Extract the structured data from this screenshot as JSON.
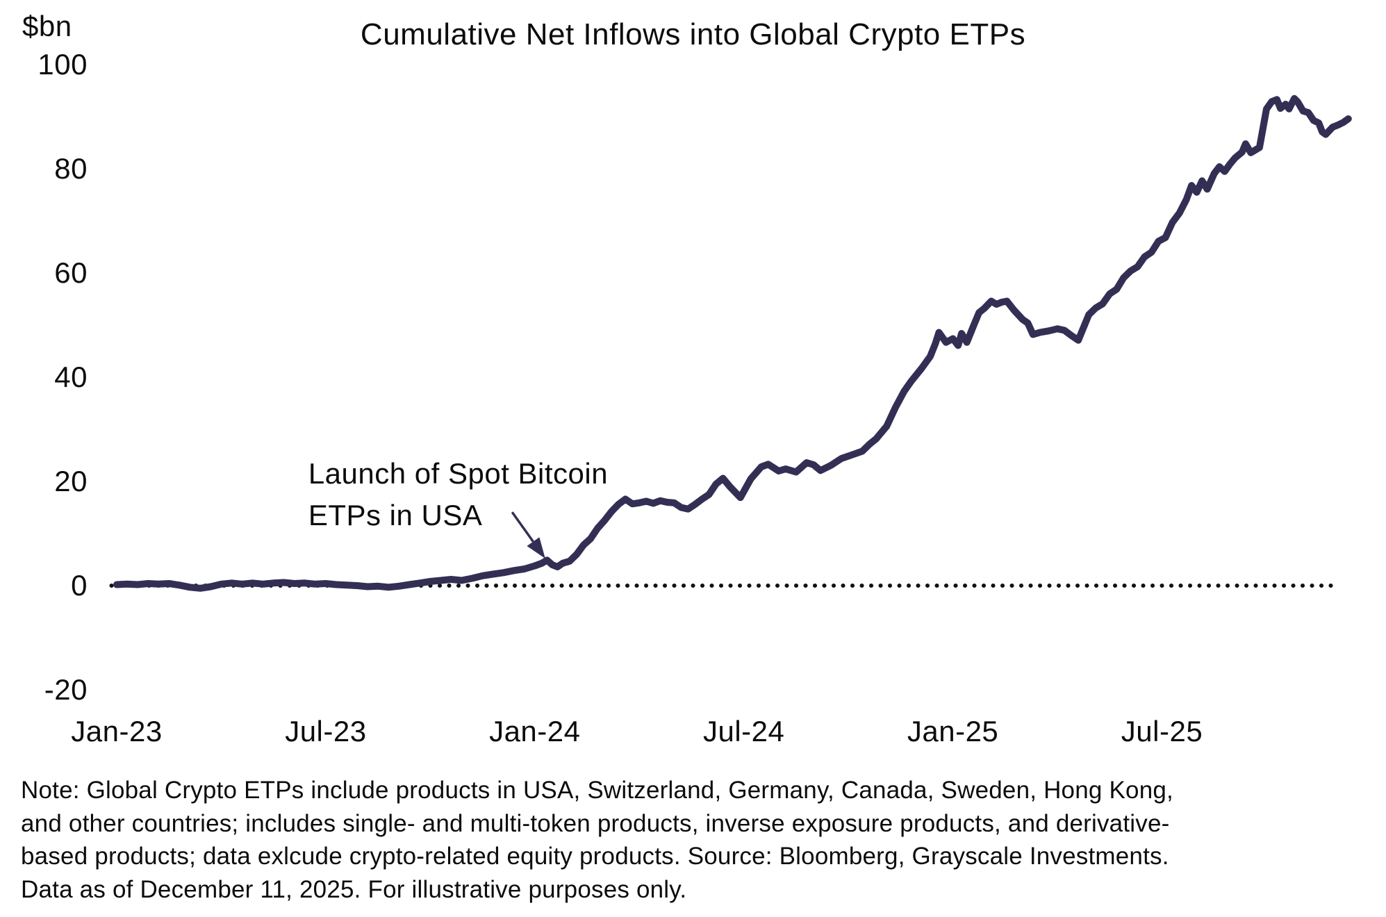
{
  "chart_data": {
    "type": "line",
    "title": "Cumulative Net Inflows into Global Crypto ETPs",
    "xlabel": "",
    "ylabel": "$bn",
    "grid": false,
    "legend": "none",
    "ylim": [
      -20,
      100
    ],
    "y_axis": {
      "unit_label": "$bn",
      "ticks": [
        100,
        80,
        60,
        40,
        20,
        0,
        -20
      ]
    },
    "x_axis": {
      "ticks": [
        {
          "label": "Jan-23",
          "month": 0
        },
        {
          "label": "Jul-23",
          "month": 6
        },
        {
          "label": "Jan-24",
          "month": 12
        },
        {
          "label": "Jul-24",
          "month": 18
        },
        {
          "label": "Jan-25",
          "month": 24
        },
        {
          "label": "Jul-25",
          "month": 30
        }
      ],
      "range_months": [
        0,
        35.4
      ]
    },
    "zero_line": {
      "style": "dotted",
      "color": "#111111",
      "start_month": -0.15,
      "end_month": 35.1
    },
    "series": [
      {
        "name": "Cumulative net inflows into global crypto ETPs ($bn)",
        "color": "#332f54",
        "points": [
          [
            0,
            0.2
          ],
          [
            0.3,
            0.3
          ],
          [
            0.6,
            0.2
          ],
          [
            0.9,
            0.4
          ],
          [
            1.2,
            0.3
          ],
          [
            1.5,
            0.4
          ],
          [
            1.8,
            0.1
          ],
          [
            2.1,
            -0.3
          ],
          [
            2.4,
            -0.5
          ],
          [
            2.7,
            -0.2
          ],
          [
            3,
            0.3
          ],
          [
            3.3,
            0.5
          ],
          [
            3.6,
            0.3
          ],
          [
            3.9,
            0.5
          ],
          [
            4.2,
            0.3
          ],
          [
            4.5,
            0.5
          ],
          [
            4.8,
            0.6
          ],
          [
            5.1,
            0.4
          ],
          [
            5.4,
            0.5
          ],
          [
            5.7,
            0.3
          ],
          [
            6,
            0.4
          ],
          [
            6.3,
            0.2
          ],
          [
            6.6,
            0.1
          ],
          [
            6.9,
            0
          ],
          [
            7.2,
            -0.2
          ],
          [
            7.5,
            -0.1
          ],
          [
            7.8,
            -0.3
          ],
          [
            8.1,
            -0.1
          ],
          [
            8.4,
            0.2
          ],
          [
            8.7,
            0.5
          ],
          [
            9,
            0.8
          ],
          [
            9.3,
            1
          ],
          [
            9.6,
            1.2
          ],
          [
            9.9,
            1
          ],
          [
            10.2,
            1.4
          ],
          [
            10.5,
            1.9
          ],
          [
            10.8,
            2.2
          ],
          [
            11.1,
            2.5
          ],
          [
            11.4,
            2.9
          ],
          [
            11.7,
            3.2
          ],
          [
            12,
            3.8
          ],
          [
            12.2,
            4.3
          ],
          [
            12.35,
            4.9
          ],
          [
            12.5,
            4
          ],
          [
            12.65,
            3.6
          ],
          [
            12.8,
            4.3
          ],
          [
            13,
            4.7
          ],
          [
            13.2,
            6
          ],
          [
            13.4,
            7.8
          ],
          [
            13.6,
            9
          ],
          [
            13.8,
            11
          ],
          [
            14,
            12.5
          ],
          [
            14.2,
            14.2
          ],
          [
            14.4,
            15.6
          ],
          [
            14.6,
            16.6
          ],
          [
            14.8,
            15.7
          ],
          [
            15,
            15.9
          ],
          [
            15.2,
            16.2
          ],
          [
            15.4,
            15.8
          ],
          [
            15.6,
            16.3
          ],
          [
            15.8,
            16
          ],
          [
            16,
            15.9
          ],
          [
            16.2,
            15
          ],
          [
            16.4,
            14.7
          ],
          [
            16.6,
            15.6
          ],
          [
            16.8,
            16.6
          ],
          [
            17,
            17.5
          ],
          [
            17.2,
            19.5
          ],
          [
            17.4,
            20.6
          ],
          [
            17.6,
            19
          ],
          [
            17.9,
            16.9
          ],
          [
            18.2,
            20.5
          ],
          [
            18.5,
            22.8
          ],
          [
            18.7,
            23.3
          ],
          [
            19,
            22
          ],
          [
            19.2,
            22.4
          ],
          [
            19.5,
            21.8
          ],
          [
            19.8,
            23.6
          ],
          [
            20,
            23.2
          ],
          [
            20.2,
            22.1
          ],
          [
            20.5,
            23.1
          ],
          [
            20.8,
            24.4
          ],
          [
            21.1,
            25.1
          ],
          [
            21.4,
            25.8
          ],
          [
            21.6,
            27.1
          ],
          [
            21.8,
            28.2
          ],
          [
            22.1,
            30.6
          ],
          [
            22.35,
            34.2
          ],
          [
            22.6,
            37.3
          ],
          [
            22.8,
            39.2
          ],
          [
            23.1,
            41.7
          ],
          [
            23.35,
            44
          ],
          [
            23.5,
            46.5
          ],
          [
            23.6,
            48.6
          ],
          [
            23.8,
            46.7
          ],
          [
            24,
            47.4
          ],
          [
            24.15,
            46.1
          ],
          [
            24.25,
            48.4
          ],
          [
            24.4,
            46.7
          ],
          [
            24.6,
            50
          ],
          [
            24.75,
            52.4
          ],
          [
            24.9,
            53.2
          ],
          [
            25.1,
            54.6
          ],
          [
            25.25,
            54
          ],
          [
            25.4,
            54.4
          ],
          [
            25.55,
            54.6
          ],
          [
            25.75,
            52.9
          ],
          [
            26,
            51.1
          ],
          [
            26.15,
            50.4
          ],
          [
            26.3,
            48.2
          ],
          [
            26.5,
            48.6
          ],
          [
            26.75,
            48.9
          ],
          [
            27,
            49.3
          ],
          [
            27.2,
            49
          ],
          [
            27.4,
            48
          ],
          [
            27.6,
            47.1
          ],
          [
            27.9,
            52
          ],
          [
            28.1,
            53.3
          ],
          [
            28.3,
            54.1
          ],
          [
            28.5,
            56
          ],
          [
            28.7,
            56.9
          ],
          [
            28.9,
            59.1
          ],
          [
            29.1,
            60.4
          ],
          [
            29.3,
            61.2
          ],
          [
            29.5,
            63.1
          ],
          [
            29.7,
            64
          ],
          [
            29.9,
            66.1
          ],
          [
            30.1,
            66.8
          ],
          [
            30.3,
            69.7
          ],
          [
            30.5,
            71.5
          ],
          [
            30.7,
            74.1
          ],
          [
            30.85,
            76.8
          ],
          [
            31,
            75.5
          ],
          [
            31.15,
            77.7
          ],
          [
            31.3,
            76.1
          ],
          [
            31.5,
            79.1
          ],
          [
            31.65,
            80.4
          ],
          [
            31.8,
            79.5
          ],
          [
            31.95,
            80.9
          ],
          [
            32.1,
            82.1
          ],
          [
            32.3,
            83.2
          ],
          [
            32.4,
            84.8
          ],
          [
            32.55,
            83.1
          ],
          [
            32.8,
            84.1
          ],
          [
            33,
            91.5
          ],
          [
            33.15,
            92.9
          ],
          [
            33.3,
            93.3
          ],
          [
            33.4,
            91.6
          ],
          [
            33.55,
            92.4
          ],
          [
            33.65,
            91.5
          ],
          [
            33.8,
            93.5
          ],
          [
            33.9,
            92.8
          ],
          [
            34.05,
            91.1
          ],
          [
            34.2,
            90.8
          ],
          [
            34.35,
            89.3
          ],
          [
            34.5,
            88.8
          ],
          [
            34.6,
            87.1
          ],
          [
            34.7,
            86.6
          ],
          [
            34.9,
            88
          ],
          [
            35.05,
            88.4
          ],
          [
            35.2,
            88.9
          ],
          [
            35.35,
            89.6
          ]
        ]
      }
    ],
    "annotation": {
      "text_lines": [
        "Launch of Spot Bitcoin",
        "ETPs in USA"
      ],
      "color": "#332f54",
      "text_month": 5.5,
      "text_top_value": 25.5,
      "arrow_from_month": 11.35,
      "arrow_from_value": 14.1,
      "arrow_to_month": 12.3,
      "arrow_to_value": 5.2
    },
    "note_lines": [
      "Note: Global Crypto ETPs include products in USA, Switzerland, Germany, Canada, Sweden, Hong Kong,",
      "and other countries; includes single- and multi-token products, inverse exposure products, and derivative-",
      "based products; data exlcude crypto-related equity products. Source: Bloomberg, Grayscale Investments.",
      "Data as of December 11, 2025. For illustrative purposes only."
    ]
  }
}
